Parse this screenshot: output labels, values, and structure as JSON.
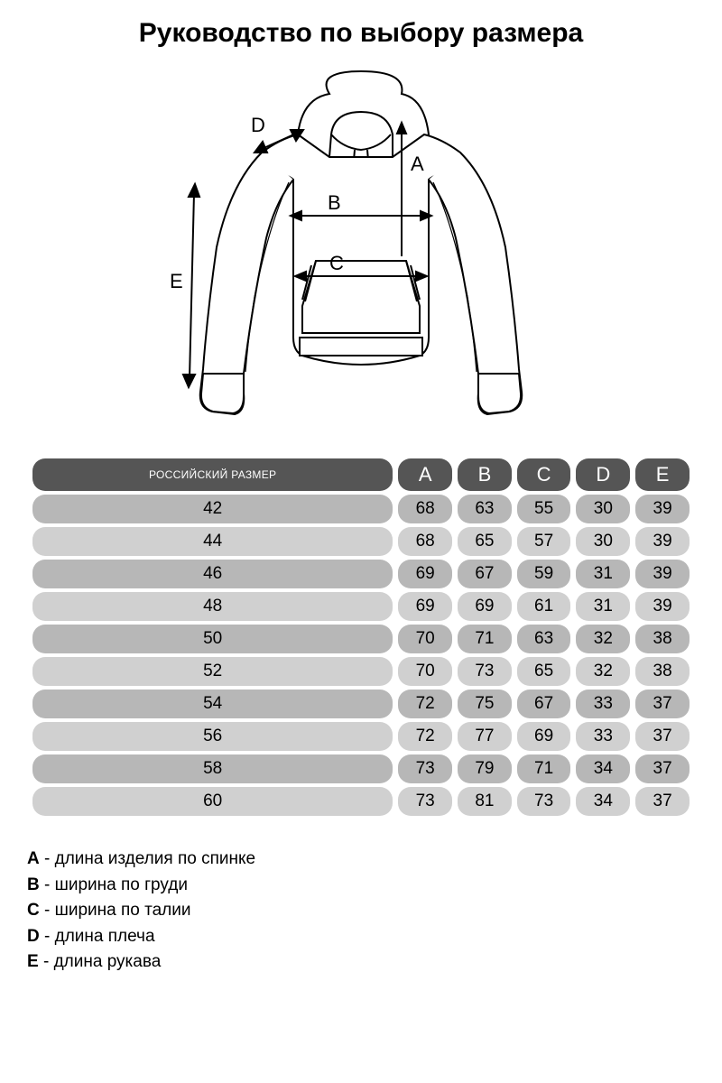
{
  "title": "Руководство по выбору размера",
  "diagram": {
    "labels": {
      "A": "A",
      "B": "B",
      "C": "C",
      "D": "D",
      "E": "E"
    },
    "stroke": "#000000",
    "fill": "#ffffff"
  },
  "table": {
    "header_bg": "#555555",
    "header_fg": "#ffffff",
    "row_odd_bg": "#b7b7b7",
    "row_even_bg": "#d0d0d0",
    "columns": [
      "РОССИЙСКИЙ РАЗМЕР",
      "A",
      "B",
      "C",
      "D",
      "E"
    ],
    "rows": [
      [
        42,
        68,
        63,
        55,
        30,
        39
      ],
      [
        44,
        68,
        65,
        57,
        30,
        39
      ],
      [
        46,
        69,
        67,
        59,
        31,
        39
      ],
      [
        48,
        69,
        69,
        61,
        31,
        39
      ],
      [
        50,
        70,
        71,
        63,
        32,
        38
      ],
      [
        52,
        70,
        73,
        65,
        32,
        38
      ],
      [
        54,
        72,
        75,
        67,
        33,
        37
      ],
      [
        56,
        72,
        77,
        69,
        33,
        37
      ],
      [
        58,
        73,
        79,
        71,
        34,
        37
      ],
      [
        60,
        73,
        81,
        73,
        34,
        37
      ]
    ]
  },
  "legend": [
    {
      "key": "A",
      "text": "длина изделия по спинке"
    },
    {
      "key": "B",
      "text": "ширина по груди"
    },
    {
      "key": "C",
      "text": "ширина по талии"
    },
    {
      "key": "D",
      "text": "длина плеча"
    },
    {
      "key": "E",
      "text": "длина рукава"
    }
  ]
}
